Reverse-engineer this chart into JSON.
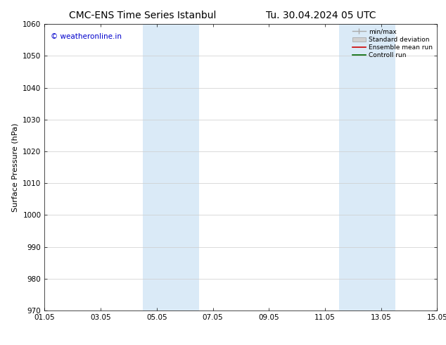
{
  "title": "CMC-ENS Time Series Istanbul",
  "title_right": "Tu. 30.04.2024 05 UTC",
  "ylabel": "Surface Pressure (hPa)",
  "ylim": [
    970,
    1060
  ],
  "yticks": [
    970,
    980,
    990,
    1000,
    1010,
    1020,
    1030,
    1040,
    1050,
    1060
  ],
  "xtick_labels": [
    "01.05",
    "03.05",
    "05.05",
    "07.05",
    "09.05",
    "11.05",
    "13.05",
    "15.05"
  ],
  "xtick_positions": [
    0,
    2,
    4,
    6,
    8,
    10,
    12,
    14
  ],
  "shaded_regions": [
    {
      "x_start": 3.5,
      "x_end": 5.5,
      "color": "#daeaf7"
    },
    {
      "x_start": 10.5,
      "x_end": 12.5,
      "color": "#daeaf7"
    }
  ],
  "watermark_text": "© weatheronline.in",
  "watermark_color": "#0000cc",
  "watermark_fontsize": 7.5,
  "legend_labels": [
    "min/max",
    "Standard deviation",
    "Ensemble mean run",
    "Controll run"
  ],
  "background_color": "#ffffff",
  "grid_color": "#cccccc",
  "font_color": "#000000",
  "title_fontsize": 10,
  "axis_fontsize": 7.5,
  "ylabel_fontsize": 8
}
